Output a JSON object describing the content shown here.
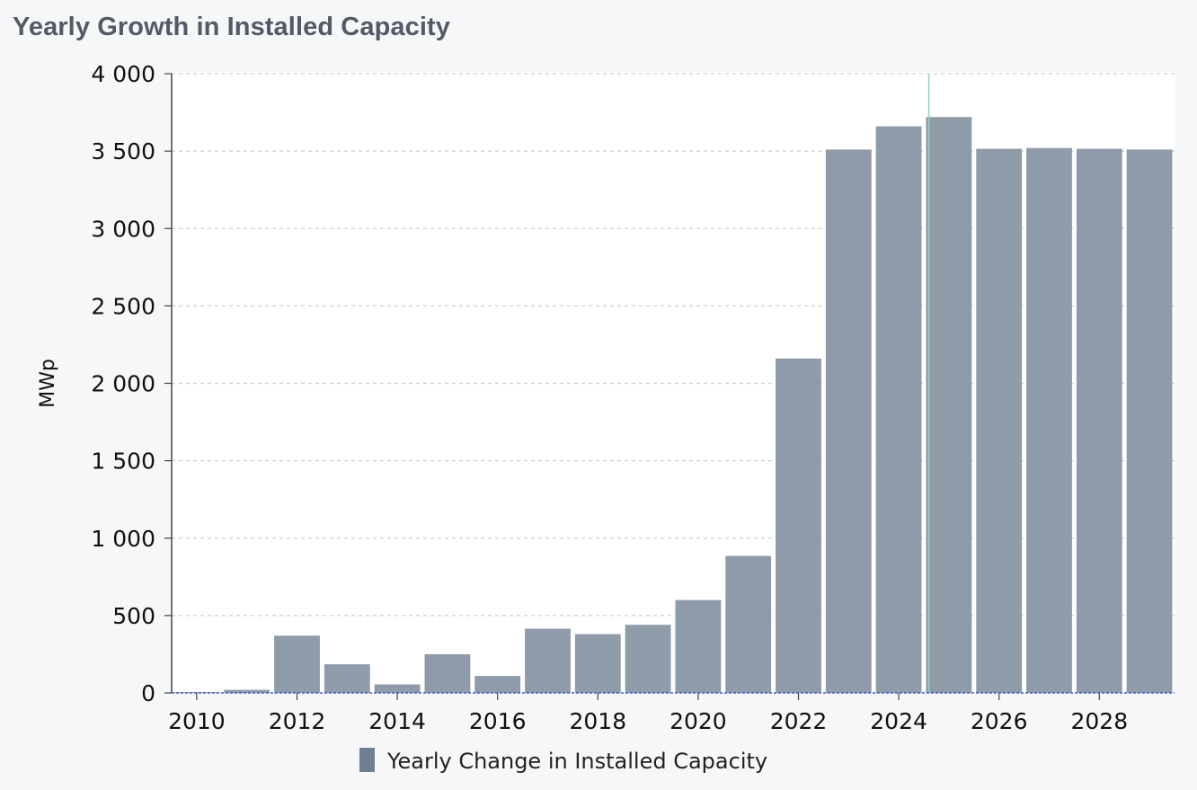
{
  "title": "Yearly Growth in Installed Capacity",
  "chart_data": {
    "type": "bar",
    "categories": [
      2010,
      2011,
      2012,
      2013,
      2014,
      2015,
      2016,
      2017,
      2018,
      2019,
      2020,
      2021,
      2022,
      2023,
      2024,
      2025,
      2026,
      2027,
      2028,
      2029
    ],
    "series": [
      {
        "name": "Yearly Change in Installed Capacity",
        "color": "#8e9ba8",
        "values": [
          5,
          20,
          370,
          185,
          55,
          250,
          110,
          415,
          380,
          440,
          600,
          885,
          2160,
          3510,
          3660,
          3720,
          3515,
          3520,
          3515,
          3510
        ]
      }
    ],
    "xticks": [
      "2010",
      "2012",
      "2014",
      "2016",
      "2018",
      "2020",
      "2022",
      "2024",
      "2026",
      "2028"
    ],
    "yticks": [
      "0",
      "500",
      "1 000",
      "1 500",
      "2 000",
      "2 500",
      "3 000",
      "3 500",
      "4 000"
    ],
    "ylabel": "MWp",
    "xlabel": "",
    "ylim": [
      0,
      4000
    ],
    "grid": true,
    "legend_position": "bottom-center",
    "current_year_marker": 2024.6
  }
}
